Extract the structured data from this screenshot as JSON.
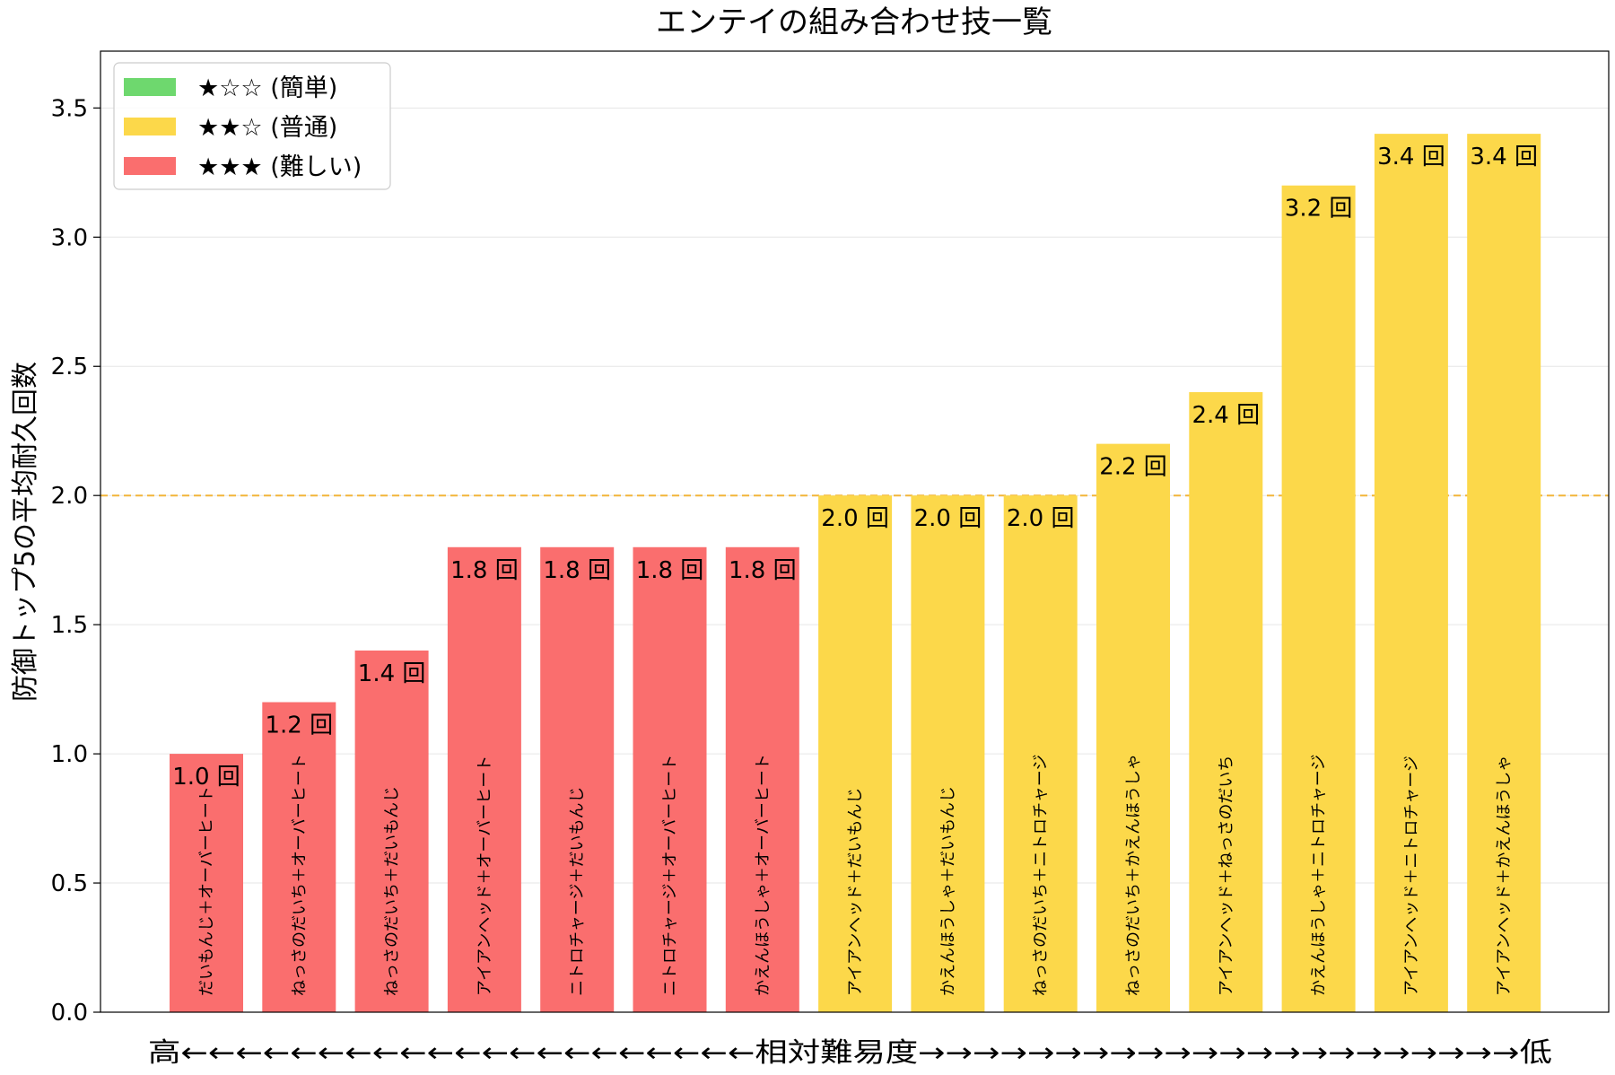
{
  "chart_data": {
    "type": "bar",
    "title": "エンテイの組み合わせ技一覧",
    "ylabel": "防御トップ5の平均耐久回数",
    "xlabel": "高←←←←←←←←←←←←←←←←←←←←←相対難易度→→→→→→→→→→→→→→→→→→→→→→低",
    "ylim": [
      0,
      3.72
    ],
    "yticks": [
      "0.0",
      "0.5",
      "1.0",
      "1.5",
      "2.0",
      "2.5",
      "3.0",
      "3.5"
    ],
    "ytick_values": [
      0,
      0.5,
      1.0,
      1.5,
      2.0,
      2.5,
      3.0,
      3.5
    ],
    "reference_line": {
      "y": 2.0,
      "style": "dashed",
      "color": "#f2b53a"
    },
    "grid": "horizontal",
    "legend_position": "top-left",
    "legend": [
      {
        "label": "★☆☆ (簡単)",
        "color": "#6ed86e"
      },
      {
        "label": "★★☆ (普通)",
        "color": "#fcd84a"
      },
      {
        "label": "★★★ (難しい)",
        "color": "#fa6e6e"
      }
    ],
    "bars": [
      {
        "category": "だいもんじ＋オーバーヒート",
        "value": 1.0,
        "label": "1.0 回",
        "difficulty": "hard"
      },
      {
        "category": "ねっさのだいち＋オーバーヒート",
        "value": 1.2,
        "label": "1.2 回",
        "difficulty": "hard"
      },
      {
        "category": "ねっさのだいち＋だいもんじ",
        "value": 1.4,
        "label": "1.4 回",
        "difficulty": "hard"
      },
      {
        "category": "アイアンヘッド＋オーバーヒート",
        "value": 1.8,
        "label": "1.8 回",
        "difficulty": "hard"
      },
      {
        "category": "ニトロチャージ＋だいもんじ",
        "value": 1.8,
        "label": "1.8 回",
        "difficulty": "hard"
      },
      {
        "category": "ニトロチャージ＋オーバーヒート",
        "value": 1.8,
        "label": "1.8 回",
        "difficulty": "hard"
      },
      {
        "category": "かえんほうしゃ＋オーバーヒート",
        "value": 1.8,
        "label": "1.8 回",
        "difficulty": "hard"
      },
      {
        "category": "アイアンヘッド＋だいもんじ",
        "value": 2.0,
        "label": "2.0 回",
        "difficulty": "normal"
      },
      {
        "category": "かえんほうしゃ＋だいもんじ",
        "value": 2.0,
        "label": "2.0 回",
        "difficulty": "normal"
      },
      {
        "category": "ねっさのだいち＋ニトロチャージ",
        "value": 2.0,
        "label": "2.0 回",
        "difficulty": "normal"
      },
      {
        "category": "ねっさのだいち＋かえんほうしゃ",
        "value": 2.2,
        "label": "2.2 回",
        "difficulty": "normal"
      },
      {
        "category": "アイアンヘッド＋ねっさのだいち",
        "value": 2.4,
        "label": "2.4 回",
        "difficulty": "normal"
      },
      {
        "category": "かえんほうしゃ＋ニトロチャージ",
        "value": 3.2,
        "label": "3.2 回",
        "difficulty": "normal"
      },
      {
        "category": "アイアンヘッド＋ニトロチャージ",
        "value": 3.4,
        "label": "3.4 回",
        "difficulty": "normal"
      },
      {
        "category": "アイアンヘッド＋かえんほうしゃ",
        "value": 3.4,
        "label": "3.4 回",
        "difficulty": "normal"
      }
    ],
    "difficulty_colors": {
      "hard": "#fa6e6e",
      "normal": "#fcd84a",
      "easy": "#6ed86e"
    }
  }
}
